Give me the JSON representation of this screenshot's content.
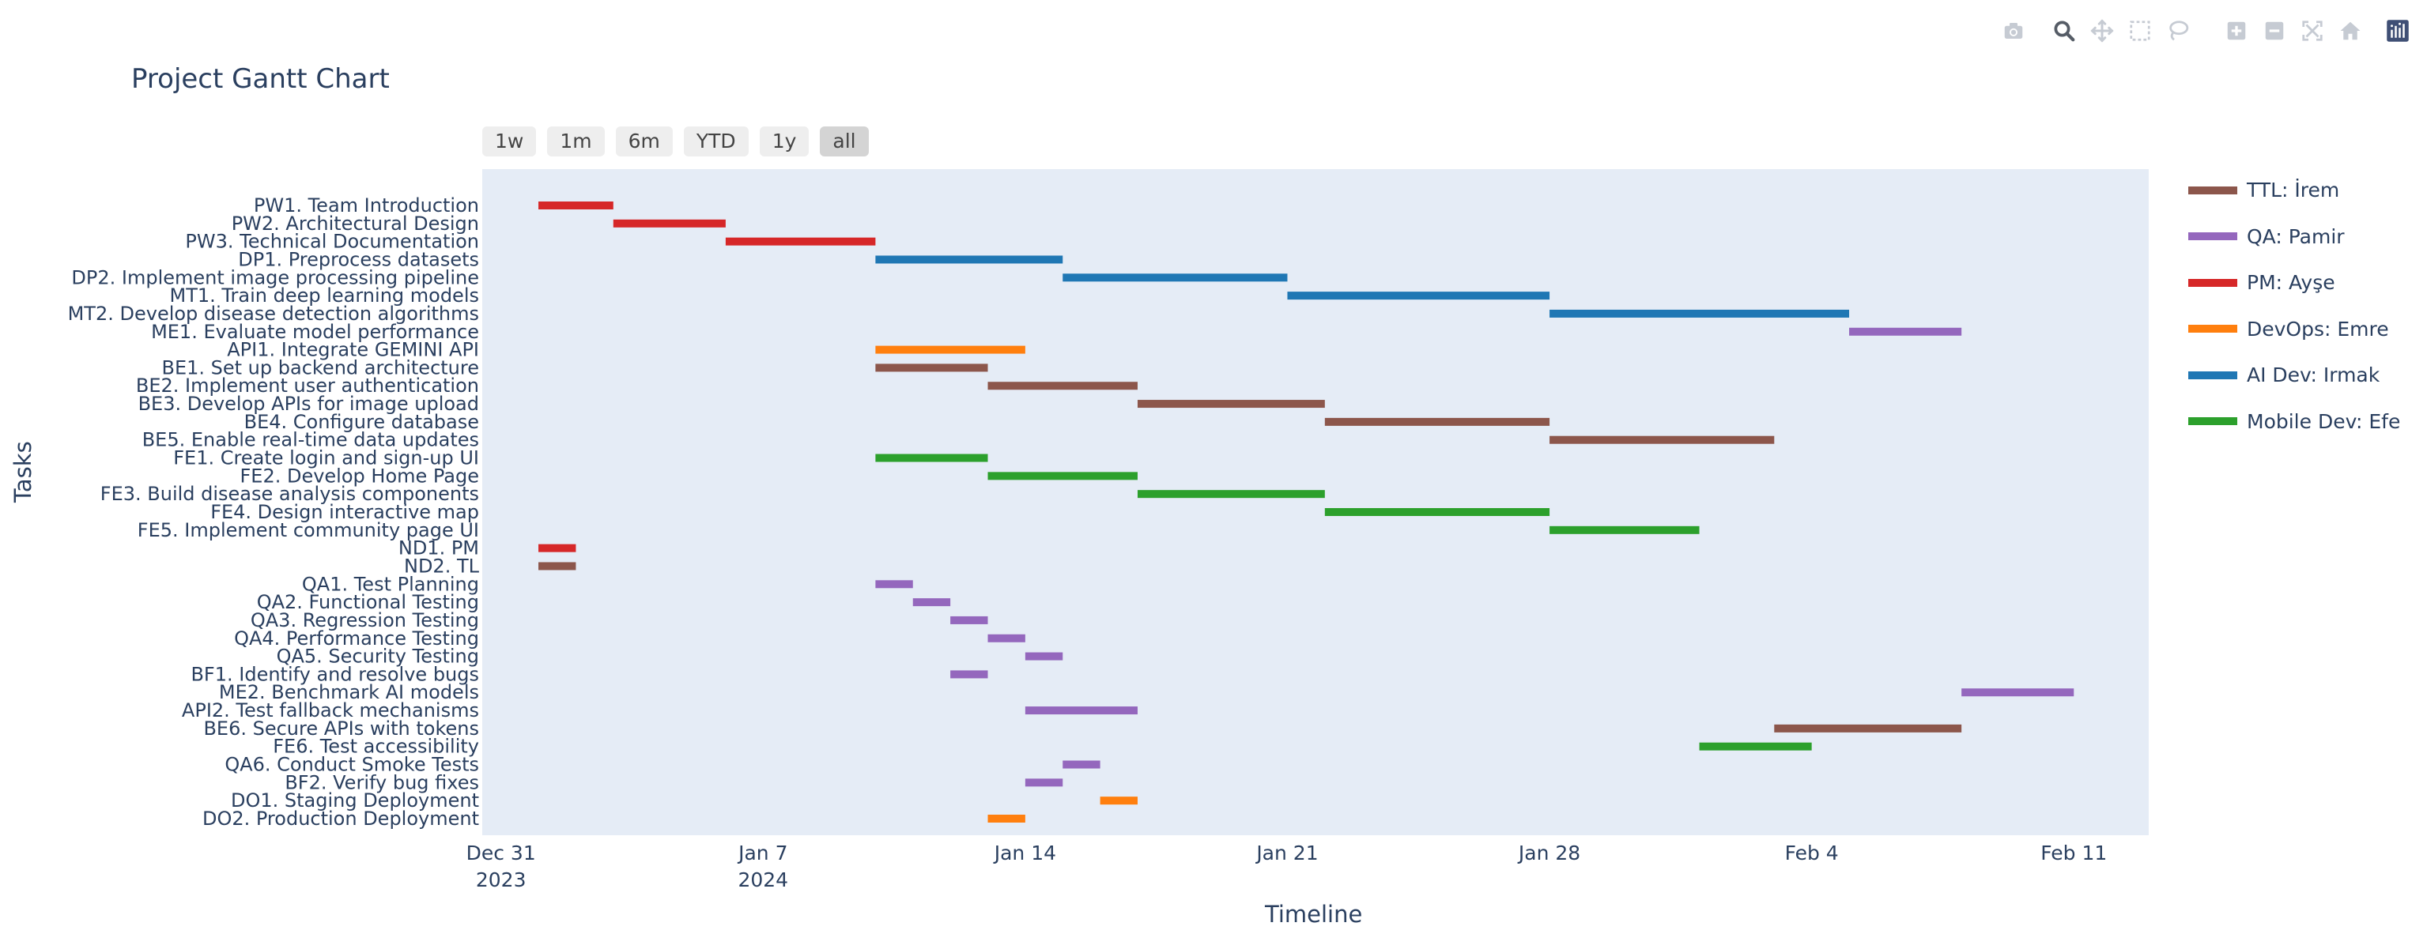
{
  "modebar": [
    {
      "name": "camera-icon"
    },
    {
      "name": "zoom-icon"
    },
    {
      "name": "pan-icon"
    },
    {
      "name": "box-select-icon"
    },
    {
      "name": "lasso-select-icon"
    },
    {
      "name": "zoom-in-icon"
    },
    {
      "name": "zoom-out-icon"
    },
    {
      "name": "autoscale-icon"
    },
    {
      "name": "reset-axes-icon"
    },
    {
      "name": "plotly-logo-icon"
    }
  ],
  "range_selector": {
    "buttons": [
      "1w",
      "1m",
      "6m",
      "YTD",
      "1y",
      "all"
    ],
    "active": "all"
  },
  "chart_data": {
    "type": "gantt",
    "title": "Project Gantt Chart",
    "xlabel": "Timeline",
    "ylabel": "Tasks",
    "xlim": [
      "2023-12-30T12:00",
      "2024-02-13T00:00"
    ],
    "x_ticks": [
      {
        "date": "2023-12-31",
        "label": "Dec 31",
        "sublabel": "2023"
      },
      {
        "date": "2024-01-07",
        "label": "Jan 7",
        "sublabel": "2024"
      },
      {
        "date": "2024-01-14",
        "label": "Jan 14",
        "sublabel": ""
      },
      {
        "date": "2024-01-21",
        "label": "Jan 21",
        "sublabel": ""
      },
      {
        "date": "2024-01-28",
        "label": "Jan 28",
        "sublabel": ""
      },
      {
        "date": "2024-02-04",
        "label": "Feb 4",
        "sublabel": ""
      },
      {
        "date": "2024-02-11",
        "label": "Feb 11",
        "sublabel": ""
      }
    ],
    "grid": false,
    "legend_position": "right",
    "series": [
      {
        "name": "TTL: İrem",
        "color": "#8c564b"
      },
      {
        "name": "QA: Pamir",
        "color": "#9467bd"
      },
      {
        "name": "PM: Ayşe",
        "color": "#d62728"
      },
      {
        "name": "DevOps: Emre",
        "color": "#ff7f0e"
      },
      {
        "name": "AI Dev: Irmak",
        "color": "#1f77b4"
      },
      {
        "name": "Mobile Dev: Efe",
        "color": "#2ca02c"
      }
    ],
    "tasks": [
      {
        "label": "PW1. Team Introduction",
        "start": "2024-01-01",
        "end": "2024-01-03",
        "series": "PM: Ayşe"
      },
      {
        "label": "PW2. Architectural Design",
        "start": "2024-01-03",
        "end": "2024-01-06",
        "series": "PM: Ayşe"
      },
      {
        "label": "PW3. Technical Documentation",
        "start": "2024-01-06",
        "end": "2024-01-10",
        "series": "PM: Ayşe"
      },
      {
        "label": "DP1. Preprocess datasets",
        "start": "2024-01-10",
        "end": "2024-01-15",
        "series": "AI Dev: Irmak"
      },
      {
        "label": "DP2. Implement image processing pipeline",
        "start": "2024-01-15",
        "end": "2024-01-21",
        "series": "AI Dev: Irmak"
      },
      {
        "label": "MT1. Train deep learning models",
        "start": "2024-01-21",
        "end": "2024-01-28",
        "series": "AI Dev: Irmak"
      },
      {
        "label": "MT2. Develop disease detection algorithms",
        "start": "2024-01-28",
        "end": "2024-02-05",
        "series": "AI Dev: Irmak"
      },
      {
        "label": "ME1. Evaluate model performance",
        "start": "2024-02-05",
        "end": "2024-02-08",
        "series": "QA: Pamir"
      },
      {
        "label": "API1. Integrate GEMINI API",
        "start": "2024-01-10",
        "end": "2024-01-14",
        "series": "DevOps: Emre"
      },
      {
        "label": "BE1. Set up backend architecture",
        "start": "2024-01-10",
        "end": "2024-01-13",
        "series": "TTL: İrem"
      },
      {
        "label": "BE2. Implement user authentication",
        "start": "2024-01-13",
        "end": "2024-01-17",
        "series": "TTL: İrem"
      },
      {
        "label": "BE3. Develop APIs for image upload",
        "start": "2024-01-17",
        "end": "2024-01-22",
        "series": "TTL: İrem"
      },
      {
        "label": "BE4. Configure database",
        "start": "2024-01-22",
        "end": "2024-01-28",
        "series": "TTL: İrem"
      },
      {
        "label": "BE5. Enable real-time data updates",
        "start": "2024-01-28",
        "end": "2024-02-03",
        "series": "TTL: İrem"
      },
      {
        "label": "FE1. Create login and sign-up UI",
        "start": "2024-01-10",
        "end": "2024-01-13",
        "series": "Mobile Dev: Efe"
      },
      {
        "label": "FE2. Develop Home Page",
        "start": "2024-01-13",
        "end": "2024-01-17",
        "series": "Mobile Dev: Efe"
      },
      {
        "label": "FE3. Build disease analysis components",
        "start": "2024-01-17",
        "end": "2024-01-22",
        "series": "Mobile Dev: Efe"
      },
      {
        "label": "FE4. Design interactive map",
        "start": "2024-01-22",
        "end": "2024-01-28",
        "series": "Mobile Dev: Efe"
      },
      {
        "label": "FE5. Implement community page UI",
        "start": "2024-01-28",
        "end": "2024-02-01",
        "series": "Mobile Dev: Efe"
      },
      {
        "label": "ND1. PM",
        "start": "2024-01-01",
        "end": "2024-01-02",
        "series": "PM: Ayşe"
      },
      {
        "label": "ND2. TL",
        "start": "2024-01-01",
        "end": "2024-01-02",
        "series": "TTL: İrem"
      },
      {
        "label": "QA1. Test Planning",
        "start": "2024-01-10",
        "end": "2024-01-11",
        "series": "QA: Pamir"
      },
      {
        "label": "QA2. Functional Testing",
        "start": "2024-01-11",
        "end": "2024-01-12",
        "series": "QA: Pamir"
      },
      {
        "label": "QA3. Regression Testing",
        "start": "2024-01-12",
        "end": "2024-01-13",
        "series": "QA: Pamir"
      },
      {
        "label": "QA4. Performance Testing",
        "start": "2024-01-13",
        "end": "2024-01-14",
        "series": "QA: Pamir"
      },
      {
        "label": "QA5. Security Testing",
        "start": "2024-01-14",
        "end": "2024-01-15",
        "series": "QA: Pamir"
      },
      {
        "label": "BF1. Identify and resolve bugs",
        "start": "2024-01-12",
        "end": "2024-01-13",
        "series": "QA: Pamir"
      },
      {
        "label": "ME2. Benchmark AI models",
        "start": "2024-02-08",
        "end": "2024-02-11",
        "series": "QA: Pamir"
      },
      {
        "label": "API2. Test fallback mechanisms",
        "start": "2024-01-14",
        "end": "2024-01-17",
        "series": "QA: Pamir"
      },
      {
        "label": "BE6. Secure APIs with tokens",
        "start": "2024-02-03",
        "end": "2024-02-08",
        "series": "TTL: İrem"
      },
      {
        "label": "FE6. Test accessibility",
        "start": "2024-02-01",
        "end": "2024-02-04",
        "series": "Mobile Dev: Efe"
      },
      {
        "label": "QA6. Conduct Smoke Tests",
        "start": "2024-01-15",
        "end": "2024-01-16",
        "series": "QA: Pamir"
      },
      {
        "label": "BF2. Verify bug fixes",
        "start": "2024-01-14",
        "end": "2024-01-15",
        "series": "QA: Pamir"
      },
      {
        "label": "DO1. Staging Deployment",
        "start": "2024-01-16",
        "end": "2024-01-17",
        "series": "DevOps: Emre"
      },
      {
        "label": "DO2. Production Deployment",
        "start": "2024-01-13",
        "end": "2024-01-14",
        "series": "DevOps: Emre"
      }
    ]
  }
}
